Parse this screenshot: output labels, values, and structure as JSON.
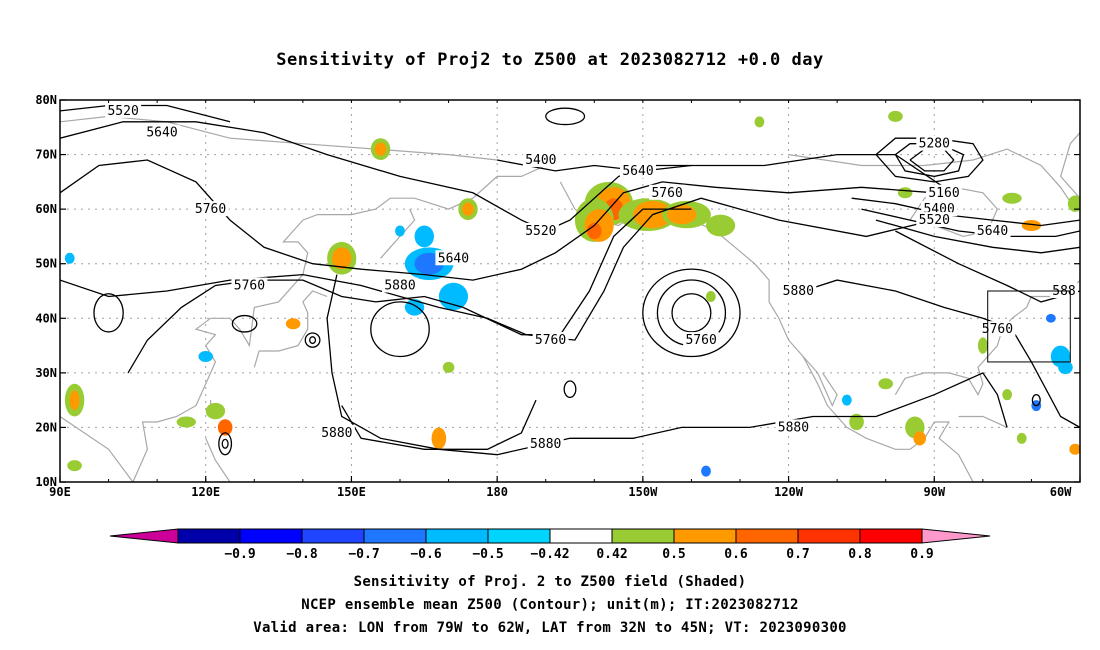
{
  "title": "Sensitivity of Proj2 to Z500 at 2023082712 +0.0 day",
  "lat_ticks": [
    "80N",
    "70N",
    "60N",
    "50N",
    "40N",
    "30N",
    "20N",
    "10N"
  ],
  "lon_ticks": [
    "90E",
    "120E",
    "150E",
    "180",
    "150W",
    "120W",
    "90W",
    "60W"
  ],
  "contour_labels": [
    {
      "text": "5520",
      "lon": 103,
      "lat": 78
    },
    {
      "text": "5640",
      "lon": 111,
      "lat": 74
    },
    {
      "text": "5760",
      "lon": 121,
      "lat": 60
    },
    {
      "text": "5400",
      "lon": 189,
      "lat": 69
    },
    {
      "text": "5520",
      "lon": 189,
      "lat": 56
    },
    {
      "text": "5640",
      "lon": 209,
      "lat": 67
    },
    {
      "text": "5760",
      "lon": 215,
      "lat": 63
    },
    {
      "text": "5640",
      "lon": 171,
      "lat": 51
    },
    {
      "text": "5760",
      "lon": 129,
      "lat": 46
    },
    {
      "text": "5880",
      "lon": 160,
      "lat": 46
    },
    {
      "text": "5760",
      "lon": 191,
      "lat": 36
    },
    {
      "text": "5760",
      "lon": 222,
      "lat": 36
    },
    {
      "text": "5880",
      "lon": 242,
      "lat": 45
    },
    {
      "text": "5880",
      "lon": 147,
      "lat": 19
    },
    {
      "text": "5880",
      "lon": 190,
      "lat": 17
    },
    {
      "text": "5880",
      "lon": 241,
      "lat": 20
    },
    {
      "text": "5280",
      "lon": 270,
      "lat": 72
    },
    {
      "text": "5160",
      "lon": 272,
      "lat": 63
    },
    {
      "text": "5400",
      "lon": 271,
      "lat": 60
    },
    {
      "text": "5520",
      "lon": 270,
      "lat": 58
    },
    {
      "text": "5640",
      "lon": 282,
      "lat": 56
    },
    {
      "text": "5760",
      "lon": 283,
      "lat": 38
    },
    {
      "text": "588",
      "lon": 299,
      "lat": 45
    }
  ],
  "valid_box": {
    "lon_min": 281,
    "lon_max": 298,
    "lat_min": 32,
    "lat_max": 45
  },
  "colorbar": {
    "labels": [
      "−0.9",
      "−0.8",
      "−0.7",
      "−0.6",
      "−0.5",
      "−0.42",
      "0.42",
      "0.5",
      "0.6",
      "0.7",
      "0.8",
      "0.9"
    ],
    "colors": [
      "#cc0099",
      "#0000aa",
      "#0000ff",
      "#1f45ff",
      "#1e78ff",
      "#00bbff",
      "#00d5ff",
      "#ffffff",
      "#99cc33",
      "#ff9900",
      "#ff6600",
      "#ff3300",
      "#ff0000",
      "#ff99cc"
    ]
  },
  "caption": {
    "line1": "Sensitivity of Proj. 2 to Z500 field (Shaded)",
    "line2": "NCEP ensemble mean Z500 (Contour); unit(m); IT:2023082712",
    "line3": "Valid area: LON from 79W to 62W, LAT from 32N to 45N; VT: 2023090300"
  },
  "colors": {
    "contour": "#000000",
    "coast": "#a8a8a8",
    "grid": "#a0a0a0",
    "green": "#99cc33",
    "orange": "#ff9900",
    "dark_orange": "#ff6600",
    "blue": "#1e78ff",
    "light_blue": "#00bbff"
  }
}
